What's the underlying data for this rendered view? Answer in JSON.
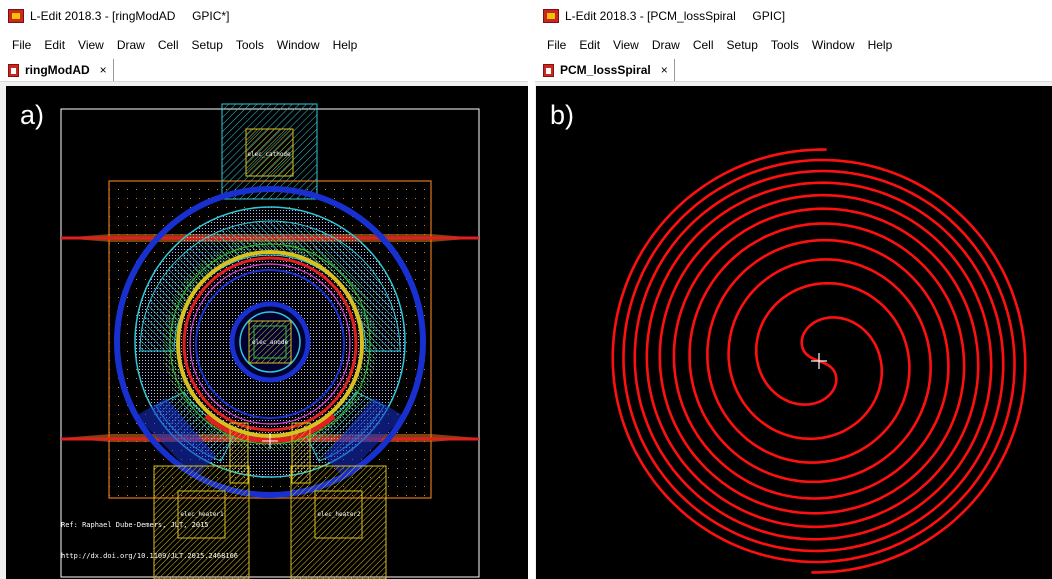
{
  "left_window": {
    "title": "L-Edit 2018.3 - [ringModAD     GPIC*]",
    "menu": [
      "File",
      "Edit",
      "View",
      "Draw",
      "Cell",
      "Setup",
      "Tools",
      "Window",
      "Help"
    ],
    "tab_label": "ringModAD",
    "tab_close": "×",
    "panel_label": "a)",
    "cell_labels": {
      "top_pad": "elec_cathode",
      "center_pad": "elec_anode",
      "bottom_left_pad": "elec_heater1",
      "bottom_right_pad": "elec_heater2"
    },
    "reference_text": "Ref: Raphael Dube-Demers, JLT, 2015",
    "doi_text": "http://dx.doi.org/10.1109/JLT.2015.2468166"
  },
  "right_window": {
    "title": "L-Edit 2018.3 - [PCM_lossSpiral     GPIC]",
    "menu": [
      "File",
      "Edit",
      "View",
      "Draw",
      "Cell",
      "Setup",
      "Tools",
      "Window",
      "Help"
    ],
    "tab_label": "PCM_lossSpiral",
    "tab_close": "×",
    "panel_label": "b)"
  },
  "colors": {
    "canvas_bg": "#000000",
    "spiral": "#ff1010",
    "origin_cross": "#ffffff",
    "orange_layer": "#e07818",
    "cyan_layer": "#30c8d8",
    "blue_layer": "#1830d0",
    "green_layer": "#30c030",
    "yellow_layer": "#d8c020",
    "red_layer": "#e02020"
  },
  "icons": {
    "app": "ledit-app-icon",
    "tab": "layout-file-icon",
    "cursor": "origin-crosshair-icon"
  }
}
